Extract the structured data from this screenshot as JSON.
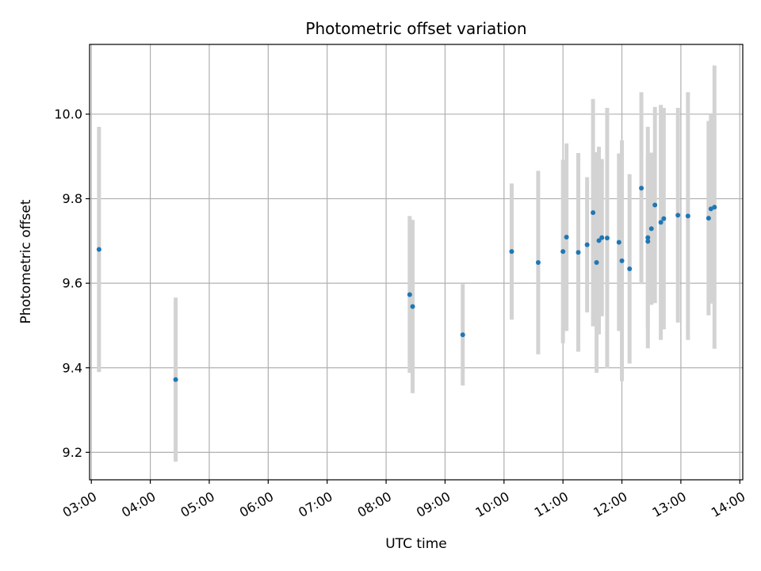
{
  "chart_data": {
    "type": "scatter",
    "title": "Photometric offset variation",
    "xlabel": "UTC time",
    "ylabel": "Photometric offset",
    "x_unit": "hours UTC",
    "xlim": [
      2.97,
      14.05
    ],
    "ylim": [
      9.135,
      10.165
    ],
    "x_ticks": [
      {
        "v": 3,
        "label": "03:00"
      },
      {
        "v": 4,
        "label": "04:00"
      },
      {
        "v": 5,
        "label": "05:00"
      },
      {
        "v": 6,
        "label": "06:00"
      },
      {
        "v": 7,
        "label": "07:00"
      },
      {
        "v": 8,
        "label": "08:00"
      },
      {
        "v": 9,
        "label": "09:00"
      },
      {
        "v": 10,
        "label": "10:00"
      },
      {
        "v": 11,
        "label": "11:00"
      },
      {
        "v": 12,
        "label": "12:00"
      },
      {
        "v": 13,
        "label": "13:00"
      },
      {
        "v": 14,
        "label": "14:00"
      }
    ],
    "y_ticks": [
      {
        "v": 9.2,
        "label": "9.2"
      },
      {
        "v": 9.4,
        "label": "9.4"
      },
      {
        "v": 9.6,
        "label": "9.6"
      },
      {
        "v": 9.8,
        "label": "9.8"
      },
      {
        "v": 10.0,
        "label": "10.0"
      }
    ],
    "grid": true,
    "point_color": "#1f77b4",
    "errorbar_color": "#d3d3d3",
    "points": [
      {
        "x": 3.13,
        "y": 9.68,
        "lo": 9.39,
        "hi": 9.97
      },
      {
        "x": 4.43,
        "y": 9.372,
        "lo": 9.178,
        "hi": 9.566
      },
      {
        "x": 8.4,
        "y": 9.573,
        "lo": 9.388,
        "hi": 9.759
      },
      {
        "x": 8.45,
        "y": 9.545,
        "lo": 9.34,
        "hi": 9.75
      },
      {
        "x": 9.3,
        "y": 9.478,
        "lo": 9.358,
        "hi": 9.598
      },
      {
        "x": 10.13,
        "y": 9.675,
        "lo": 9.514,
        "hi": 9.836
      },
      {
        "x": 10.58,
        "y": 9.649,
        "lo": 9.432,
        "hi": 9.866
      },
      {
        "x": 11.0,
        "y": 9.675,
        "lo": 9.458,
        "hi": 9.892
      },
      {
        "x": 11.06,
        "y": 9.709,
        "lo": 9.487,
        "hi": 9.931
      },
      {
        "x": 11.26,
        "y": 9.673,
        "lo": 9.438,
        "hi": 9.908
      },
      {
        "x": 11.41,
        "y": 9.691,
        "lo": 9.531,
        "hi": 9.851
      },
      {
        "x": 11.51,
        "y": 9.767,
        "lo": 9.498,
        "hi": 10.036
      },
      {
        "x": 11.57,
        "y": 9.649,
        "lo": 9.388,
        "hi": 9.91
      },
      {
        "x": 11.61,
        "y": 9.701,
        "lo": 9.479,
        "hi": 9.923
      },
      {
        "x": 11.66,
        "y": 9.708,
        "lo": 9.522,
        "hi": 9.894
      },
      {
        "x": 11.75,
        "y": 9.707,
        "lo": 9.399,
        "hi": 10.015
      },
      {
        "x": 11.95,
        "y": 9.697,
        "lo": 9.487,
        "hi": 9.907
      },
      {
        "x": 12.0,
        "y": 9.653,
        "lo": 9.368,
        "hi": 9.938
      },
      {
        "x": 12.13,
        "y": 9.634,
        "lo": 9.41,
        "hi": 9.858
      },
      {
        "x": 12.33,
        "y": 9.825,
        "lo": 9.598,
        "hi": 10.052
      },
      {
        "x": 12.44,
        "y": 9.708,
        "lo": 9.446,
        "hi": 9.97
      },
      {
        "x": 12.44,
        "y": 9.699,
        "lo": 9.496,
        "hi": 9.902
      },
      {
        "x": 12.5,
        "y": 9.729,
        "lo": 9.549,
        "hi": 9.909
      },
      {
        "x": 12.56,
        "y": 9.785,
        "lo": 9.553,
        "hi": 10.017
      },
      {
        "x": 12.66,
        "y": 9.744,
        "lo": 9.466,
        "hi": 10.022
      },
      {
        "x": 12.71,
        "y": 9.753,
        "lo": 9.491,
        "hi": 10.015
      },
      {
        "x": 12.95,
        "y": 9.761,
        "lo": 9.507,
        "hi": 10.015
      },
      {
        "x": 13.12,
        "y": 9.759,
        "lo": 9.466,
        "hi": 10.052
      },
      {
        "x": 13.47,
        "y": 9.754,
        "lo": 9.524,
        "hi": 9.984
      },
      {
        "x": 13.51,
        "y": 9.776,
        "lo": 9.552,
        "hi": 10.0
      },
      {
        "x": 13.57,
        "y": 9.78,
        "lo": 9.445,
        "hi": 10.115
      }
    ]
  }
}
